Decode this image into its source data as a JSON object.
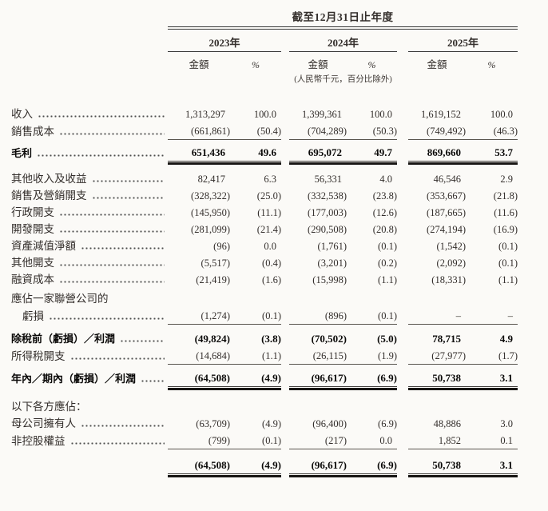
{
  "table": {
    "period_title": "截至12月31日止年度",
    "years": [
      "2023年",
      "2024年",
      "2025年"
    ],
    "col_amount": "金額",
    "col_percent": "%",
    "unit_note": "(人民幣千元，百分比除外)",
    "rows": [
      {
        "label": "收入",
        "leaders": true,
        "bold": false,
        "indent": false,
        "underline": "none",
        "space_before": 0,
        "cells": [
          "1,313,297",
          "100.0",
          "1,399,361",
          "100.0",
          "1,619,152",
          "100.0"
        ]
      },
      {
        "label": "銷售成本",
        "leaders": true,
        "bold": false,
        "indent": false,
        "underline": "single",
        "space_before": 0,
        "cells": [
          "(661,861)",
          "(50.4)",
          "(704,289)",
          "(50.3)",
          "(749,492)",
          "(46.3)"
        ]
      },
      {
        "label": "毛利",
        "leaders": true,
        "bold": true,
        "indent": false,
        "underline": "double",
        "space_before": 5,
        "cells": [
          "651,436",
          "49.6",
          "695,072",
          "49.7",
          "869,660",
          "53.7"
        ]
      },
      {
        "label": "其他收入及收益",
        "leaders": true,
        "bold": false,
        "indent": false,
        "underline": "none",
        "space_before": 11,
        "cells": [
          "82,417",
          "6.3",
          "56,331",
          "4.0",
          "46,546",
          "2.9"
        ]
      },
      {
        "label": "銷售及營銷開支",
        "leaders": true,
        "bold": false,
        "indent": false,
        "underline": "none",
        "space_before": 0,
        "cells": [
          "(328,322)",
          "(25.0)",
          "(332,538)",
          "(23.8)",
          "(353,667)",
          "(21.8)"
        ]
      },
      {
        "label": "行政開支",
        "leaders": true,
        "bold": false,
        "indent": false,
        "underline": "none",
        "space_before": 0,
        "cells": [
          "(145,950)",
          "(11.1)",
          "(177,003)",
          "(12.6)",
          "(187,665)",
          "(11.6)"
        ]
      },
      {
        "label": "開發開支",
        "leaders": true,
        "bold": false,
        "indent": false,
        "underline": "none",
        "space_before": 0,
        "cells": [
          "(281,099)",
          "(21.4)",
          "(290,508)",
          "(20.8)",
          "(274,194)",
          "(16.9)"
        ]
      },
      {
        "label": "資產減值淨額",
        "leaders": true,
        "bold": false,
        "indent": false,
        "underline": "none",
        "space_before": 0,
        "cells": [
          "(96)",
          "0.0",
          "(1,761)",
          "(0.1)",
          "(1,542)",
          "(0.1)"
        ]
      },
      {
        "label": "其他開支",
        "leaders": true,
        "bold": false,
        "indent": false,
        "underline": "none",
        "space_before": 0,
        "cells": [
          "(5,517)",
          "(0.4)",
          "(3,201)",
          "(0.2)",
          "(2,092)",
          "(0.1)"
        ]
      },
      {
        "label": "融資成本",
        "leaders": true,
        "bold": false,
        "indent": false,
        "underline": "none",
        "space_before": 0,
        "cells": [
          "(21,419)",
          "(1.6)",
          "(15,998)",
          "(1.1)",
          "(18,331)",
          "(1.1)"
        ]
      },
      {
        "label": "應佔一家聯營公司的",
        "leaders": false,
        "bold": false,
        "indent": false,
        "underline": "none",
        "space_before": 3,
        "cells": null
      },
      {
        "label": "虧損",
        "leaders": true,
        "bold": false,
        "indent": true,
        "underline": "single",
        "space_before": 0,
        "cells": [
          "(1,274)",
          "(0.1)",
          "(896)",
          "(0.1)",
          "–",
          "–"
        ]
      },
      {
        "label": "除稅前（虧損）／利潤",
        "leaders": true,
        "bold": true,
        "indent": false,
        "underline": "none",
        "space_before": 7,
        "cells": [
          "(49,824)",
          "(3.8)",
          "(70,502)",
          "(5.0)",
          "78,715",
          "4.9"
        ]
      },
      {
        "label": "所得稅開支",
        "leaders": true,
        "bold": false,
        "indent": false,
        "underline": "single",
        "space_before": 0,
        "cells": [
          "(14,684)",
          "(1.1)",
          "(26,115)",
          "(1.9)",
          "(27,977)",
          "(1.7)"
        ]
      },
      {
        "label": "年內／期內（虧損）／利潤",
        "leaders": true,
        "bold": true,
        "indent": false,
        "underline": "double",
        "space_before": 6,
        "cells": [
          "(64,508)",
          "(4.9)",
          "(96,617)",
          "(6.9)",
          "50,738",
          "3.1"
        ]
      },
      {
        "label": "以下各方應佔：",
        "leaders": false,
        "bold": false,
        "indent": false,
        "underline": "none",
        "space_before": 14,
        "cells": null
      },
      {
        "label": "母公司擁有人",
        "leaders": true,
        "bold": false,
        "indent": false,
        "underline": "none",
        "space_before": 0,
        "cells": [
          "(63,709)",
          "(4.9)",
          "(96,400)",
          "(6.9)",
          "48,886",
          "3.0"
        ]
      },
      {
        "label": "非控股權益",
        "leaders": true,
        "bold": false,
        "indent": false,
        "underline": "single",
        "space_before": 0,
        "cells": [
          "(799)",
          "(0.1)",
          "(217)",
          "0.0",
          "1,852",
          "0.1"
        ]
      },
      {
        "label": "",
        "leaders": false,
        "bold": true,
        "indent": false,
        "underline": "double",
        "space_before": 9,
        "cells": [
          "(64,508)",
          "(4.9)",
          "(96,617)",
          "(6.9)",
          "50,738",
          "3.1"
        ]
      }
    ]
  }
}
